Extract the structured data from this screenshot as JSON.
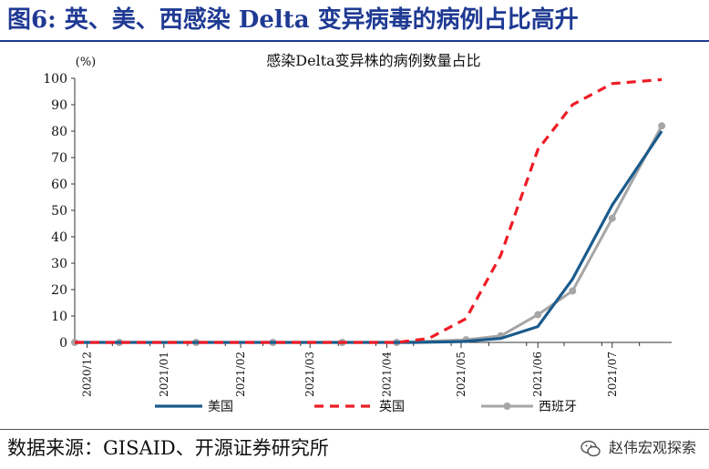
{
  "header": {
    "title": "图6: 英、美、西感染 Delta 变异病毒的病例占比高升"
  },
  "footer": {
    "source": "数据来源：GISAID、开源证券研究所",
    "watermark": "赵伟宏观探索"
  },
  "colors": {
    "title": "#1f3a93",
    "us": "#1b5b8c",
    "uk": "#ee1c25",
    "spain": "#a6a6a6"
  },
  "chart_data": {
    "type": "line",
    "title": "感染Delta变异株的病例数量占比",
    "ylabel": "(%)",
    "ylim": [
      0,
      100
    ],
    "yticks": [
      0,
      10,
      20,
      30,
      40,
      50,
      60,
      70,
      80,
      90,
      100
    ],
    "xlim": [
      "2020-11-26",
      "2021-07-25"
    ],
    "xticks": [
      "2020/12",
      "2021/01",
      "2021/02",
      "2021/03",
      "2021/04",
      "2021/05",
      "2021/06",
      "2021/07"
    ],
    "tick_dates": [
      "2020-12-01",
      "2021-01-01",
      "2021-02-01",
      "2021-03-01",
      "2021-04-01",
      "2021-05-01",
      "2021-06-01",
      "2021-07-01"
    ],
    "legend_position": "bottom",
    "series": [
      {
        "name": "美国",
        "style": "solid",
        "x": [
          "2020-11-26",
          "2020-12-14",
          "2021-01-14",
          "2021-02-14",
          "2021-03-14",
          "2021-04-12",
          "2021-05-01",
          "2021-05-17",
          "2021-06-01",
          "2021-06-15",
          "2021-07-01",
          "2021-07-21"
        ],
        "values": [
          0,
          0,
          0,
          0,
          0,
          0,
          0.3,
          1.5,
          6,
          24,
          52,
          80
        ]
      },
      {
        "name": "英国",
        "style": "dashed",
        "x": [
          "2020-11-26",
          "2020-12-14",
          "2021-01-14",
          "2021-02-14",
          "2021-03-14",
          "2021-04-05",
          "2021-04-18",
          "2021-05-03",
          "2021-05-17",
          "2021-06-01",
          "2021-06-15",
          "2021-07-01",
          "2021-07-21"
        ],
        "values": [
          0,
          0,
          0,
          0,
          0,
          0,
          1.5,
          9,
          33,
          73,
          90,
          98,
          99.5
        ]
      },
      {
        "name": "西班牙",
        "style": "solid-marker",
        "x": [
          "2020-11-26",
          "2020-12-14",
          "2021-01-14",
          "2021-02-14",
          "2021-03-14",
          "2021-04-05",
          "2021-05-03",
          "2021-05-17",
          "2021-06-01",
          "2021-06-15",
          "2021-07-01",
          "2021-07-21"
        ],
        "values": [
          0,
          0,
          0,
          0,
          0,
          0,
          1,
          2.5,
          10.5,
          19.5,
          47,
          82
        ]
      }
    ]
  }
}
